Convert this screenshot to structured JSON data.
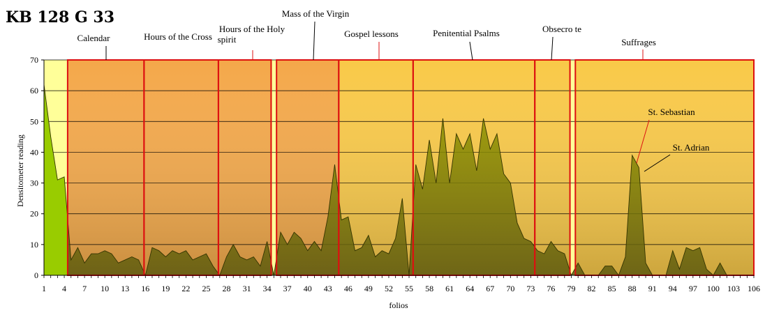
{
  "chart_data": {
    "type": "area",
    "title": "KB 128 G 33",
    "xlabel": "folios",
    "ylabel": "Densitometer reading",
    "ylim": [
      0,
      70
    ],
    "yticks": [
      0,
      10,
      20,
      30,
      40,
      50,
      60,
      70
    ],
    "xlim": [
      1,
      106
    ],
    "xtick_labels": [
      "1",
      "4",
      "7",
      "10",
      "13",
      "16",
      "19",
      "22",
      "25",
      "28",
      "31",
      "34",
      "37",
      "40",
      "43",
      "46",
      "49",
      "52",
      "55",
      "58",
      "61",
      "64",
      "67",
      "70",
      "73",
      "76",
      "79",
      "82",
      "85",
      "88",
      "91",
      "94",
      "97",
      "100",
      "103",
      "106"
    ],
    "grid": true,
    "series": [
      {
        "name": "Densitometer reading",
        "values": [
          62,
          45,
          31,
          32,
          5,
          9,
          4,
          7,
          7,
          8,
          7,
          4,
          5,
          6,
          5,
          0,
          9,
          8,
          6,
          8,
          7,
          8,
          5,
          6,
          7,
          3,
          0,
          6,
          10,
          6,
          5,
          6,
          3,
          11,
          0,
          14,
          10,
          14,
          12,
          8,
          11,
          8,
          19,
          36,
          18,
          19,
          8,
          9,
          13,
          6,
          8,
          7,
          12,
          25,
          0,
          36,
          28,
          44,
          30,
          51,
          30,
          46,
          41,
          46,
          34,
          51,
          41,
          46,
          33,
          30,
          17,
          12,
          11,
          8,
          7,
          11,
          8,
          7,
          0,
          4,
          0,
          0,
          0,
          3,
          3,
          0,
          6,
          39,
          35,
          4,
          0,
          0,
          0,
          8,
          2,
          9,
          8,
          9,
          2,
          0,
          4,
          0,
          0,
          0,
          0,
          0
        ]
      }
    ],
    "sections": [
      {
        "name": "Calendar",
        "start": 4.5,
        "end": 15.8,
        "color": "#F4A84A"
      },
      {
        "name": "Hours of the Cross",
        "start": 15.8,
        "end": 26.8,
        "color": "#F4A84A"
      },
      {
        "name": "Hours of the Holy spirit",
        "start": 26.8,
        "end": 34.6,
        "color": "#F4A84A"
      },
      {
        "name": "Mass of the Virgin",
        "start": 35.4,
        "end": 44.6,
        "color": "#F4A84A"
      },
      {
        "name": "Gospel lessons",
        "start": 44.6,
        "end": 55.6,
        "color": "#F9C948"
      },
      {
        "name": "Penitential Psalms",
        "start": 55.6,
        "end": 73.6,
        "color": "#F9C948"
      },
      {
        "name": "Obsecro te",
        "start": 73.6,
        "end": 78.8,
        "color": "#F9C948"
      },
      {
        "name": "Suffrages",
        "start": 79.6,
        "end": 106,
        "color": "#F9C948"
      }
    ],
    "annotations": [
      {
        "text": "St. Sebastian",
        "folio": 89
      },
      {
        "text": "St. Adrian",
        "folio": 89
      }
    ]
  }
}
